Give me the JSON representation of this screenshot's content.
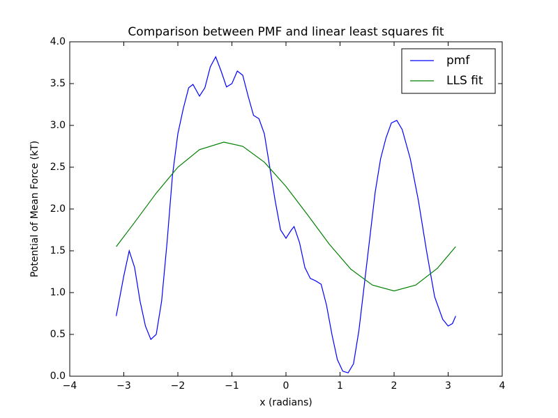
{
  "chart_data": {
    "type": "line",
    "title": "Comparison between PMF and linear least squares fit",
    "x_label": "x (radians)",
    "y_label": "Potential of Mean Force (kT)",
    "xlim": [
      -4,
      4
    ],
    "ylim": [
      0,
      4
    ],
    "xticks": [
      {
        "value": -4,
        "label": "−4"
      },
      {
        "value": -3,
        "label": "−3"
      },
      {
        "value": -2,
        "label": "−2"
      },
      {
        "value": -1,
        "label": "−1"
      },
      0,
      1,
      2,
      3,
      4
    ],
    "yticks": [
      {
        "value": 0,
        "label": "0.0"
      },
      0.5,
      {
        "value": 1,
        "label": "1.0"
      },
      1.5,
      {
        "value": 2,
        "label": "2.0"
      },
      2.5,
      {
        "value": 3,
        "label": "3.0"
      },
      3.5,
      {
        "value": 4,
        "label": "4.0"
      }
    ],
    "legend": "upper right",
    "series": [
      {
        "name": "pmf",
        "color": "#0000ff",
        "x": [
          -3.14,
          -3.0,
          -2.9,
          -2.8,
          -2.7,
          -2.6,
          -2.5,
          -2.4,
          -2.3,
          -2.2,
          -2.1,
          -2.0,
          -1.9,
          -1.8,
          -1.72,
          -1.6,
          -1.5,
          -1.4,
          -1.3,
          -1.2,
          -1.1,
          -1.0,
          -0.9,
          -0.8,
          -0.7,
          -0.6,
          -0.5,
          -0.4,
          -0.3,
          -0.2,
          -0.1,
          0.0,
          0.1,
          0.15,
          0.25,
          0.35,
          0.45,
          0.55,
          0.65,
          0.75,
          0.85,
          0.95,
          1.05,
          1.15,
          1.25,
          1.35,
          1.45,
          1.55,
          1.65,
          1.75,
          1.85,
          1.95,
          2.05,
          2.15,
          2.3,
          2.45,
          2.6,
          2.75,
          2.9,
          3.0,
          3.08,
          3.14
        ],
        "values": [
          0.72,
          1.2,
          1.5,
          1.3,
          0.9,
          0.6,
          0.44,
          0.5,
          0.9,
          1.6,
          2.4,
          2.9,
          3.2,
          3.45,
          3.49,
          3.35,
          3.45,
          3.7,
          3.82,
          3.65,
          3.46,
          3.5,
          3.65,
          3.6,
          3.35,
          3.12,
          3.08,
          2.9,
          2.5,
          2.1,
          1.75,
          1.65,
          1.75,
          1.79,
          1.6,
          1.3,
          1.17,
          1.14,
          1.1,
          0.85,
          0.5,
          0.2,
          0.06,
          0.04,
          0.15,
          0.55,
          1.1,
          1.65,
          2.2,
          2.6,
          2.85,
          3.03,
          3.06,
          2.95,
          2.6,
          2.1,
          1.5,
          0.95,
          0.68,
          0.6,
          0.63,
          0.72
        ]
      },
      {
        "name": "LLS fit",
        "color": "#008000",
        "x": [
          -3.14,
          -2.8,
          -2.4,
          -2.0,
          -1.6,
          -1.15,
          -0.8,
          -0.4,
          0,
          0.4,
          0.8,
          1.2,
          1.6,
          2.0,
          2.4,
          2.8,
          3.14
        ],
        "values": [
          1.55,
          1.84,
          2.19,
          2.5,
          2.71,
          2.8,
          2.75,
          2.56,
          2.27,
          1.93,
          1.58,
          1.28,
          1.09,
          1.02,
          1.09,
          1.29,
          1.55
        ]
      }
    ]
  }
}
